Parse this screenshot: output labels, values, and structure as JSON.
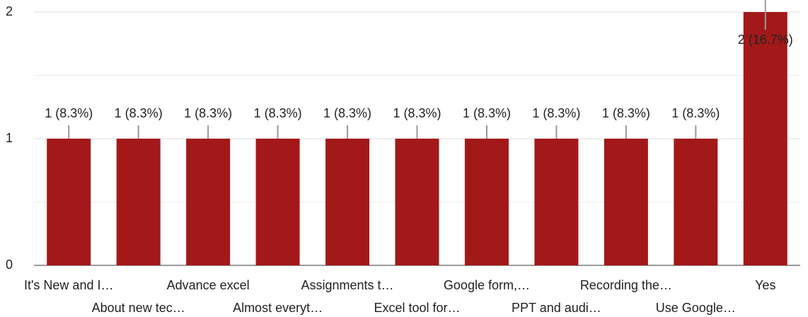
{
  "chart_data": {
    "type": "bar",
    "categories": [
      "It's New and I…",
      "About new tec…",
      "Advance excel",
      "Almost everyt…",
      "Assignments t…",
      "Excel tool for…",
      "Google form,…",
      "PPT and audi…",
      "Recording the…",
      "Use Google…",
      "Yes"
    ],
    "values": [
      1,
      1,
      1,
      1,
      1,
      1,
      1,
      1,
      1,
      1,
      2
    ],
    "value_labels": [
      "1 (8.3%)",
      "1 (8.3%)",
      "1 (8.3%)",
      "1 (8.3%)",
      "1 (8.3%)",
      "1 (8.3%)",
      "1 (8.3%)",
      "1 (8.3%)",
      "1 (8.3%)",
      "1 (8.3%)",
      "2 (16.7%)"
    ],
    "color": "#a31919",
    "ylim": [
      0,
      2
    ],
    "yticks": [
      0,
      1,
      2
    ],
    "minor_gridlines": [
      0.5,
      1.5
    ],
    "grid": true
  }
}
